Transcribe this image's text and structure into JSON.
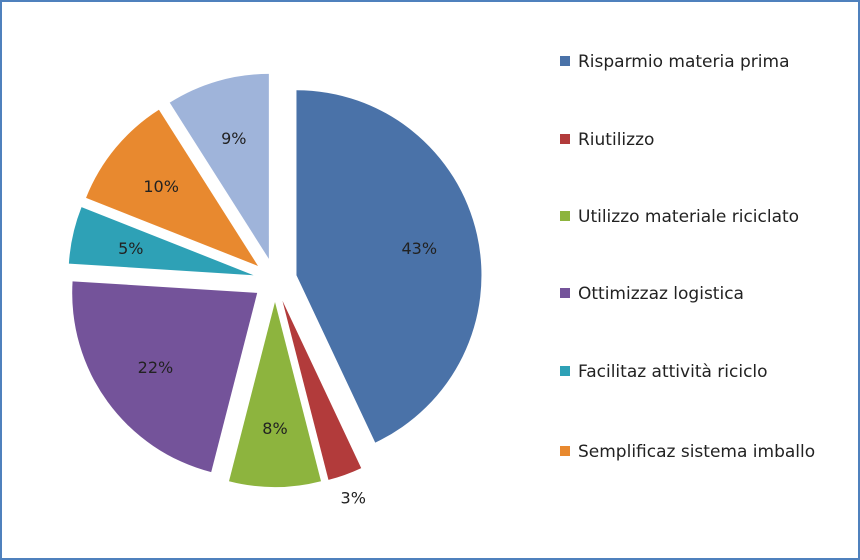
{
  "chart_data": {
    "type": "pie",
    "title": "",
    "slices": [
      {
        "label": "Risparmio materia prima",
        "value": 43,
        "display": "43%",
        "color": "#4a72a8"
      },
      {
        "label": "Riutilizzo",
        "value": 3,
        "display": "3%",
        "color": "#b23b3b"
      },
      {
        "label": "Utilizzo materiale riciclato",
        "value": 8,
        "display": "8%",
        "color": "#8db43e"
      },
      {
        "label": "Ottimizzaz logistica",
        "value": 22,
        "display": "22%",
        "color": "#74539a"
      },
      {
        "label": "Facilitaz attività riciclo",
        "value": 5,
        "display": "5%",
        "color": "#2ea1b6"
      },
      {
        "label": "Semplificaz sistema imballo",
        "value": 10,
        "display": "10%",
        "color": "#e8892f"
      },
      {
        "label": "",
        "value": 9,
        "display": "9%",
        "color": "#9fb4da"
      }
    ],
    "legend_position": "right"
  }
}
